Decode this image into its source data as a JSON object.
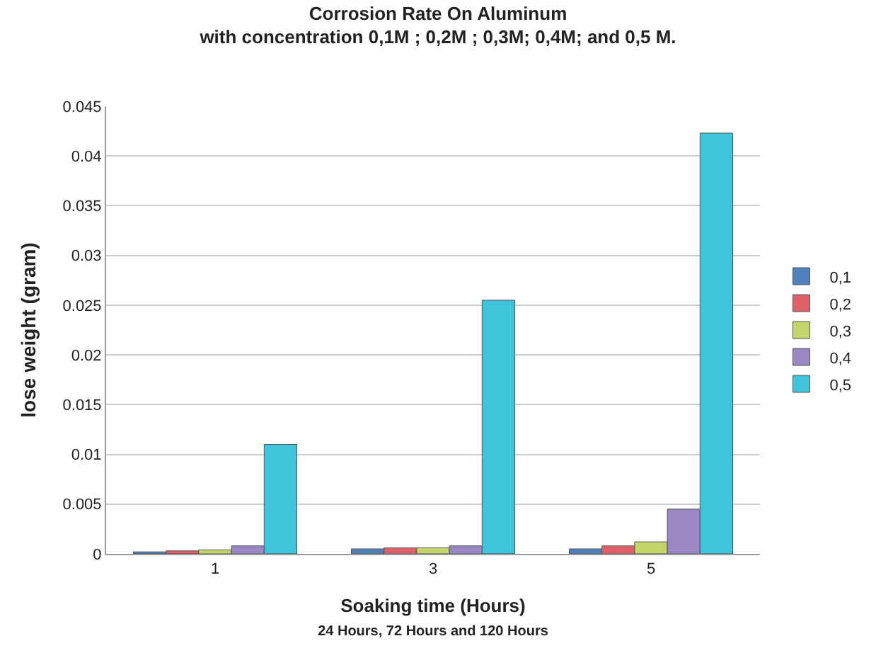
{
  "chart_data": {
    "type": "bar",
    "title": "Corrosion Rate On Aluminum",
    "subtitle": "with concentration 0,1M ; 0,2M ; 0,3M; 0,4M; and 0,5 M.",
    "xlabel": "Soaking time (Hours)",
    "ylabel": "lose weight (gram)",
    "annotations": [
      "24 Hours, 72 Hours and 120 Hours"
    ],
    "categories": [
      "1",
      "3",
      "5"
    ],
    "series": [
      {
        "name": "0,1",
        "color": "#4f81bd",
        "values": [
          0.0002,
          0.0005,
          0.0005
        ]
      },
      {
        "name": "0,2",
        "color": "#e0606a",
        "values": [
          0.0003,
          0.0006,
          0.0008
        ]
      },
      {
        "name": "0,3",
        "color": "#c4d66a",
        "values": [
          0.0004,
          0.0006,
          0.0012
        ]
      },
      {
        "name": "0,4",
        "color": "#9b87c4",
        "values": [
          0.0008,
          0.0008,
          0.0045
        ]
      },
      {
        "name": "0,5",
        "color": "#3fc4dc",
        "values": [
          0.011,
          0.0255,
          0.0423
        ]
      }
    ],
    "ylim": [
      0,
      0.045
    ],
    "yticks": [
      0,
      0.005,
      0.01,
      0.015,
      0.02,
      0.025,
      0.03,
      0.035,
      0.04,
      0.045
    ],
    "grid": "y",
    "legend": "right"
  }
}
